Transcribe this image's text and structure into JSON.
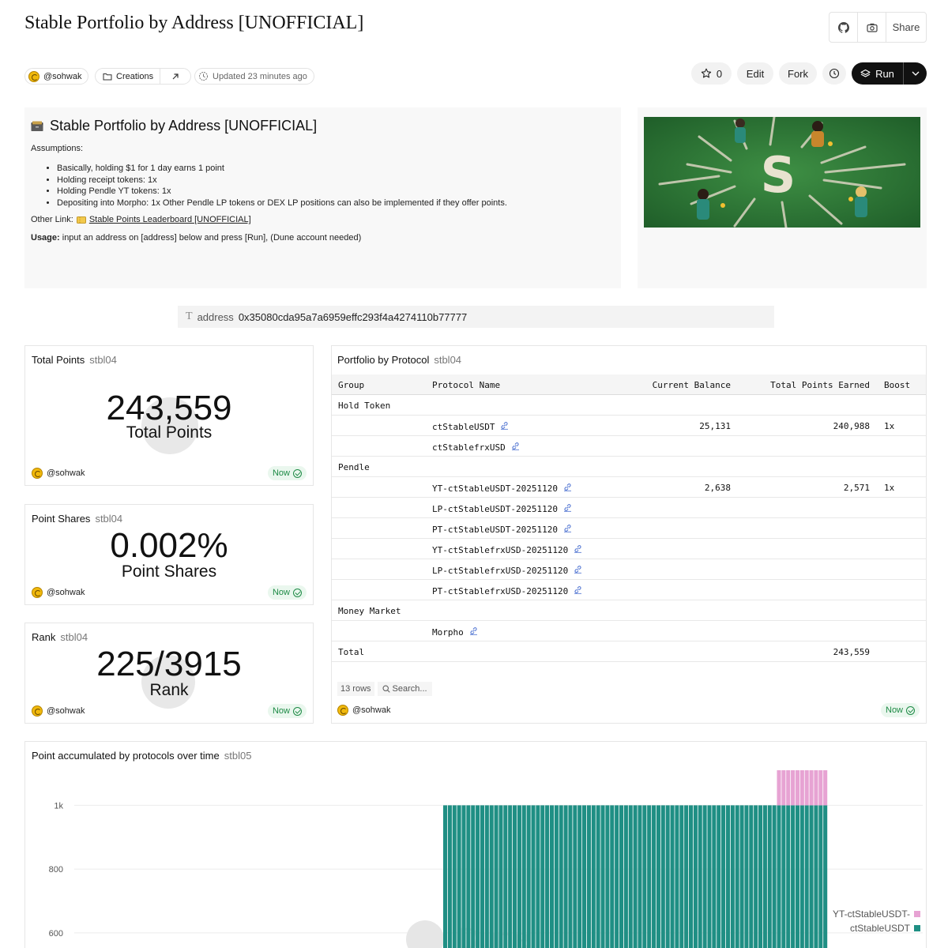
{
  "header": {
    "title": "Stable Portfolio by Address [UNOFFICIAL]",
    "share_label": "Share",
    "owner": "@sohwak",
    "folder": "Creations",
    "updated": "Updated 23 minutes ago",
    "star_count": "0",
    "edit_label": "Edit",
    "fork_label": "Fork",
    "run_label": "Run"
  },
  "intro": {
    "title": "Stable Portfolio by Address [UNOFFICIAL]",
    "assumptions_label": "Assumptions:",
    "assumptions": [
      "Basically, holding $1 for 1 day earns 1 point",
      "Holding receipt tokens: 1x",
      "Holding Pendle YT tokens: 1x",
      "Depositing into Morpho: 1x Other Pendle LP tokens or DEX LP positions can also be implemented if they offer points."
    ],
    "other_link_label": "Other Link:",
    "other_link_text": "Stable Points Leaderboard [UNOFFICIAL]",
    "usage_label": "Usage:",
    "usage_text": "input an address on [address] below and press [Run], (Dune account needed)"
  },
  "params": {
    "address_label": "address",
    "address_value": "0x35080cda95a7a6959effc293f4a4274110b77777"
  },
  "counters": [
    {
      "title": "Total Points",
      "query": "stbl04",
      "value": "243,559",
      "label": "Total Points",
      "owner": "@sohwak",
      "status": "Now"
    },
    {
      "title": "Point Shares",
      "query": "stbl04",
      "value": "0.002%",
      "label": "Point Shares",
      "owner": "@sohwak",
      "status": "Now"
    },
    {
      "title": "Rank",
      "query": "stbl04",
      "value": "225/3915",
      "label": "Rank",
      "owner": "@sohwak",
      "status": "Now"
    }
  ],
  "portfolio": {
    "title": "Portfolio by Protocol",
    "query": "stbl04",
    "columns": [
      "Group",
      "Protocol Name",
      "Current Balance",
      "Total Points Earned",
      "Boost"
    ],
    "rows": [
      {
        "group": "Hold Token",
        "name": "",
        "balance": "",
        "points": "",
        "boost": "",
        "link": false
      },
      {
        "group": "",
        "name": "ctStableUSDT",
        "balance": "25,131",
        "points": "240,988",
        "boost": "1x",
        "link": true
      },
      {
        "group": "",
        "name": "ctStablefrxUSD",
        "balance": "",
        "points": "",
        "boost": "",
        "link": true
      },
      {
        "group": "Pendle",
        "name": "",
        "balance": "",
        "points": "",
        "boost": "",
        "link": false
      },
      {
        "group": "",
        "name": "YT-ctStableUSDT-20251120",
        "balance": "2,638",
        "points": "2,571",
        "boost": "1x",
        "link": true
      },
      {
        "group": "",
        "name": "LP-ctStableUSDT-20251120",
        "balance": "",
        "points": "",
        "boost": "",
        "link": true
      },
      {
        "group": "",
        "name": "PT-ctStableUSDT-20251120",
        "balance": "",
        "points": "",
        "boost": "",
        "link": true
      },
      {
        "group": "",
        "name": "YT-ctStablefrxUSD-20251120",
        "balance": "",
        "points": "",
        "boost": "",
        "link": true
      },
      {
        "group": "",
        "name": "LP-ctStablefrxUSD-20251120",
        "balance": "",
        "points": "",
        "boost": "",
        "link": true
      },
      {
        "group": "",
        "name": "PT-ctStablefrxUSD-20251120",
        "balance": "",
        "points": "",
        "boost": "",
        "link": true
      },
      {
        "group": "Money Market",
        "name": "",
        "balance": "",
        "points": "",
        "boost": "",
        "link": false
      },
      {
        "group": "",
        "name": "Morpho",
        "balance": "",
        "points": "",
        "boost": "",
        "link": true
      },
      {
        "group": "Total",
        "name": "",
        "balance": "",
        "points": "243,559",
        "boost": "",
        "link": false
      }
    ],
    "row_count": "13 rows",
    "search_placeholder": "Search...",
    "owner": "@sohwak",
    "status": "Now"
  },
  "chart_card": {
    "title": "Point accumulated by protocols over time",
    "query": "stbl05",
    "watermark": "Dune"
  },
  "chart_data": {
    "type": "bar",
    "stacked": true,
    "y_ticks": [
      "600",
      "800",
      "1k"
    ],
    "y_tick_values": [
      600,
      800,
      1000
    ],
    "ylim": [
      550,
      1110
    ],
    "num_bars": 160,
    "zero_bars_before": 77,
    "series": [
      {
        "name": "ctStableUSDT",
        "color": "#1f8f84",
        "values_description": "constant",
        "value": 1000,
        "from_bar": 77,
        "to_bar": 159
      },
      {
        "name": "YT-ctStableUSDT-",
        "color": "#e7a3d3",
        "value": 110,
        "from_bar": 149,
        "to_bar": 159
      }
    ],
    "legend_position": "bottom-right"
  },
  "colors": {
    "teal": "#1f8f84",
    "pink": "#e7a3d3",
    "now_green": "#1d8a45"
  }
}
